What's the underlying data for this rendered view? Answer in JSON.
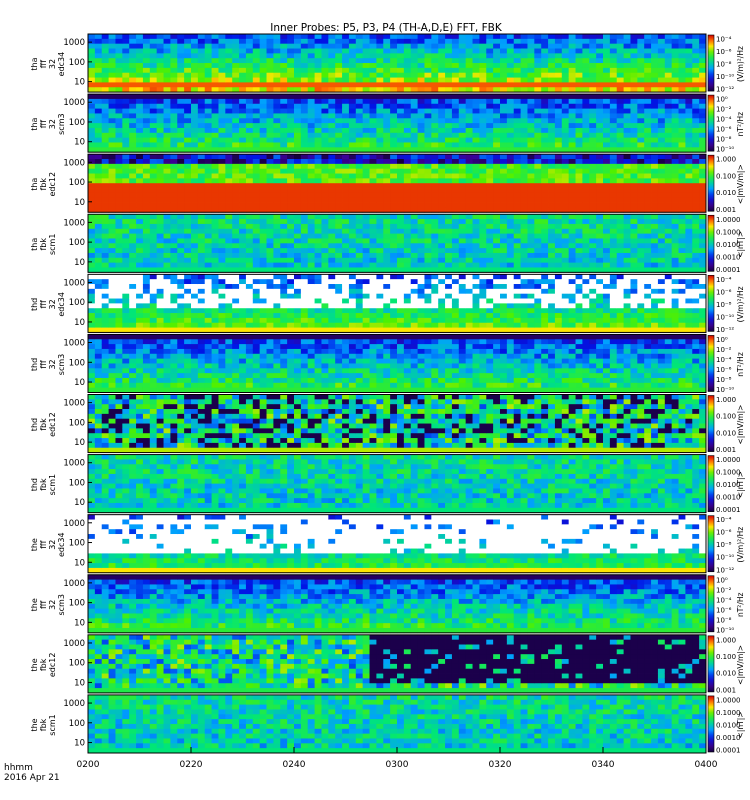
{
  "title": "Inner Probes: P5, P3, P4 (TH-A,D,E) FFT, FBK",
  "footer": {
    "line1": "hhmm",
    "line2": "2016 Apr 21"
  },
  "colors": {
    "frame": "#000000",
    "background": "#ffffff"
  },
  "chart_data": {
    "type": "heatmap",
    "title": "Inner Probes: P5, P3, P4 (TH-A,D,E) FFT, FBK",
    "x": {
      "ticks": [
        "0200",
        "0220",
        "0240",
        "0300",
        "0320",
        "0340",
        "0400"
      ],
      "range": [
        "0200",
        "0400"
      ]
    },
    "panels": [
      {
        "ylabel": [
          "tha",
          "fff",
          "32",
          "edc34"
        ],
        "yticks": [
          "1000",
          "100",
          "10"
        ],
        "yscale": "log",
        "cblabel": "(V/m)²/Hz",
        "cbticks": [
          "10⁻⁴",
          "10⁻⁶",
          "10⁻⁸",
          "10⁻¹⁰",
          "10⁻¹²"
        ],
        "style": "efield"
      },
      {
        "ylabel": [
          "tha",
          "fff",
          "32",
          "scm3"
        ],
        "yticks": [
          "1000",
          "100",
          "10"
        ],
        "yscale": "log",
        "cblabel": "nT²/Hz",
        "cbticks": [
          "10⁰",
          "10⁻²",
          "10⁻⁴",
          "10⁻⁶",
          "10⁻⁸",
          "10⁻¹⁰"
        ],
        "style": "bfield"
      },
      {
        "ylabel": [
          "tha",
          "fbk",
          "edc12"
        ],
        "yticks": [
          "1000",
          "100",
          "10"
        ],
        "yscale": "log",
        "cblabel": "<|mV/m|>",
        "cbticks": [
          "1.000",
          "0.100",
          "0.010",
          "0.001"
        ],
        "style": "fbk_e_a"
      },
      {
        "ylabel": [
          "tha",
          "fbk",
          "scm1"
        ],
        "yticks": [
          "1000",
          "100",
          "10"
        ],
        "yscale": "log",
        "cblabel": "<|nT|>",
        "cbticks": [
          "1.0000",
          "0.1000",
          "0.0100",
          "0.0010",
          "0.0001"
        ],
        "style": "fbk_b"
      },
      {
        "ylabel": [
          "thd",
          "fff",
          "32",
          "edc34"
        ],
        "yticks": [
          "1000",
          "100",
          "10"
        ],
        "yscale": "log",
        "cblabel": "(V/m)²/Hz",
        "cbticks": [
          "10⁻⁴",
          "10⁻⁶",
          "10⁻⁸",
          "10⁻¹⁰",
          "10⁻¹²"
        ],
        "style": "efield_sparse"
      },
      {
        "ylabel": [
          "thd",
          "fff",
          "32",
          "scm3"
        ],
        "yticks": [
          "1000",
          "100",
          "10"
        ],
        "yscale": "log",
        "cblabel": "nT²/Hz",
        "cbticks": [
          "10⁰",
          "10⁻²",
          "10⁻⁴",
          "10⁻⁶",
          "10⁻⁸",
          "10⁻¹⁰"
        ],
        "style": "bfield"
      },
      {
        "ylabel": [
          "thd",
          "fbk",
          "edc12"
        ],
        "yticks": [
          "1000",
          "100",
          "10"
        ],
        "yscale": "log",
        "cblabel": "<|mV/m|>",
        "cbticks": [
          "1.000",
          "0.100",
          "0.010",
          "0.001"
        ],
        "style": "fbk_e_d"
      },
      {
        "ylabel": [
          "thd",
          "fbk",
          "scm1"
        ],
        "yticks": [
          "1000",
          "100",
          "10"
        ],
        "yscale": "log",
        "cblabel": "<|nT|>",
        "cbticks": [
          "1.0000",
          "0.1000",
          "0.0100",
          "0.0010",
          "0.0001"
        ],
        "style": "fbk_b"
      },
      {
        "ylabel": [
          "the",
          "fff",
          "32",
          "edc34"
        ],
        "yticks": [
          "1000",
          "100",
          "10"
        ],
        "yscale": "log",
        "cblabel": "(V/m)²/Hz",
        "cbticks": [
          "10⁻⁴",
          "10⁻⁶",
          "10⁻⁸",
          "10⁻¹⁰",
          "10⁻¹²"
        ],
        "style": "efield_very_sparse"
      },
      {
        "ylabel": [
          "the",
          "fff",
          "32",
          "scm3"
        ],
        "yticks": [
          "1000",
          "100",
          "10"
        ],
        "yscale": "log",
        "cblabel": "nT²/Hz",
        "cbticks": [
          "10⁰",
          "10⁻²",
          "10⁻⁴",
          "10⁻⁶",
          "10⁻⁸",
          "10⁻¹⁰"
        ],
        "style": "bfield"
      },
      {
        "ylabel": [
          "the",
          "fbk",
          "edc12"
        ],
        "yticks": [
          "1000",
          "100",
          "10"
        ],
        "yscale": "log",
        "cblabel": "<|mV/m|>",
        "cbticks": [
          "1.000",
          "0.100",
          "0.010",
          "0.001"
        ],
        "style": "fbk_e_e"
      },
      {
        "ylabel": [
          "the",
          "fbk",
          "scm1"
        ],
        "yticks": [
          "1000",
          "100",
          "10"
        ],
        "yscale": "log",
        "cblabel": "<|nT|>",
        "cbticks": [
          "1.0000",
          "0.1000",
          "0.0100",
          "0.0010",
          "0.0001"
        ],
        "style": "fbk_b"
      }
    ]
  }
}
